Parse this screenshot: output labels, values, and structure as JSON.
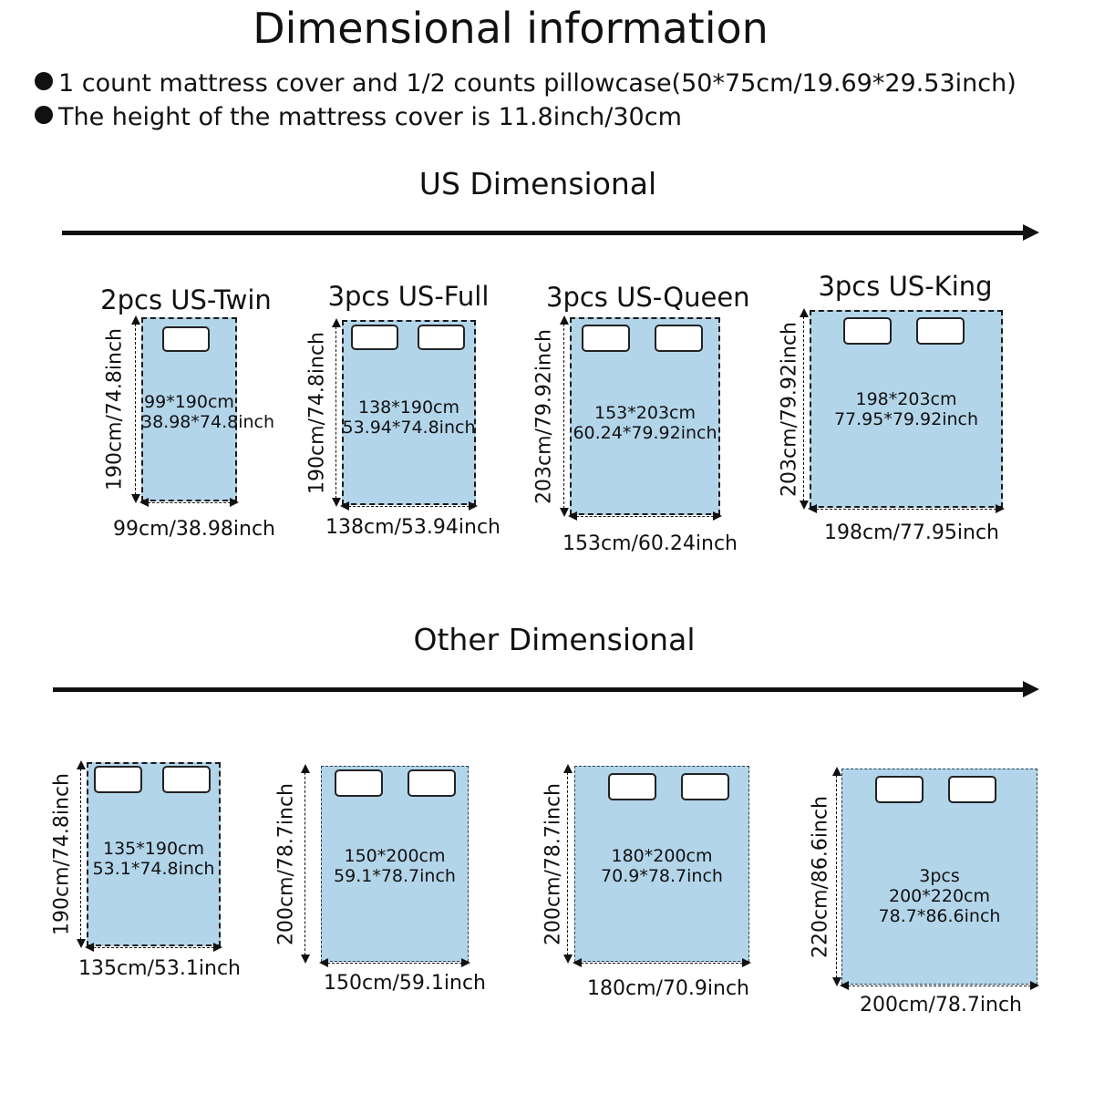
{
  "title": "Dimensional information",
  "notes": [
    "1 count mattress cover and 1/2 counts pillowcase(50*75cm/19.69*29.53inch)",
    "The height of the mattress cover is 11.8inch/30cm"
  ],
  "colors": {
    "bed_fill": "#b3d5ea",
    "pillow_fill": "#ffffff",
    "line": "#111111"
  },
  "icons": [
    "bullet-dot-icon",
    "arrow-right-icon",
    "pillow-icon"
  ],
  "us_section": {
    "title": "US Dimensional",
    "items": [
      {
        "name": "2pcs US-Twin",
        "pillows": 1,
        "label": [
          "99*190cm",
          "38.98*74.8inch"
        ],
        "width_label": "99cm/38.98inch",
        "height_label": "190cm/74.8inch"
      },
      {
        "name": "3pcs US-Full",
        "pillows": 2,
        "label": [
          "138*190cm",
          "53.94*74.8inch"
        ],
        "width_label": "138cm/53.94inch",
        "height_label": "190cm/74.8inch"
      },
      {
        "name": "3pcs US-Queen",
        "pillows": 2,
        "label": [
          "153*203cm",
          "60.24*79.92inch"
        ],
        "width_label": "153cm/60.24inch",
        "height_label": "203cm/79.92inch"
      },
      {
        "name": "3pcs US-King",
        "pillows": 2,
        "label": [
          "198*203cm",
          "77.95*79.92inch"
        ],
        "width_label": "198cm/77.95inch",
        "height_label": "203cm/79.92inch"
      }
    ]
  },
  "other_section": {
    "title": "Other Dimensional",
    "items": [
      {
        "pillows": 2,
        "label": [
          "135*190cm",
          "53.1*74.8inch"
        ],
        "width_label": "135cm/53.1inch",
        "height_label": "190cm/74.8inch"
      },
      {
        "pillows": 2,
        "label": [
          "150*200cm",
          "59.1*78.7inch"
        ],
        "width_label": "150cm/59.1inch",
        "height_label": "200cm/78.7inch"
      },
      {
        "pillows": 2,
        "label": [
          "180*200cm",
          "70.9*78.7inch"
        ],
        "width_label": "180cm/70.9inch",
        "height_label": "200cm/78.7inch"
      },
      {
        "pillows": 2,
        "label": [
          "3pcs",
          "200*220cm",
          "78.7*86.6inch"
        ],
        "width_label": "200cm/78.7inch",
        "height_label": "220cm/86.6inch"
      }
    ]
  }
}
